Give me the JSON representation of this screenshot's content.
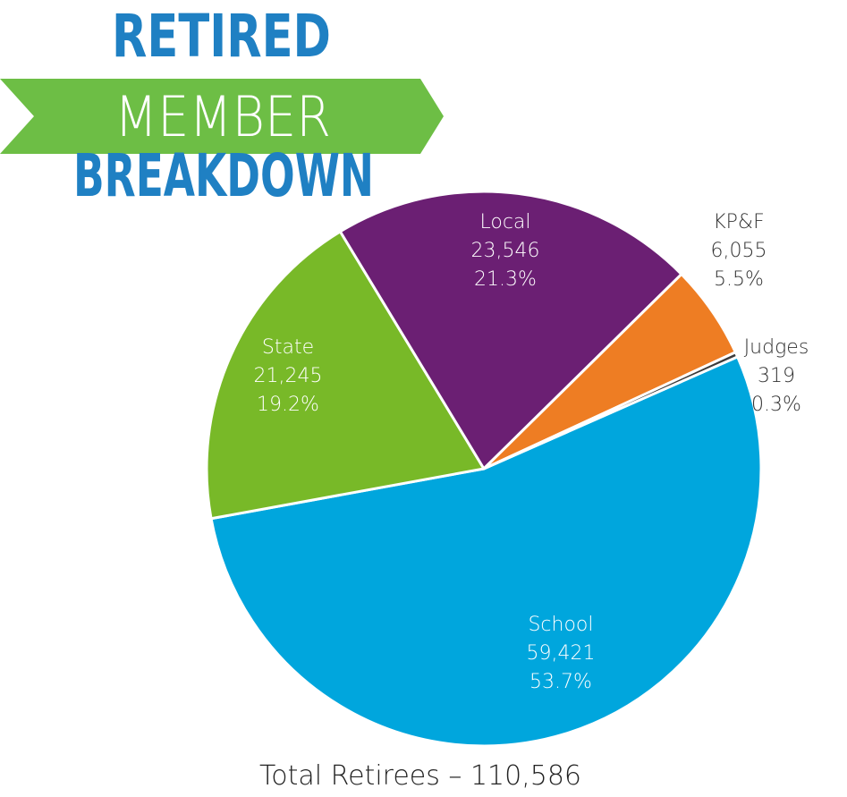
{
  "chart_data": {
    "type": "pie",
    "title_lines": [
      "RETIRED",
      "MEMBER",
      "BREAKDOWN"
    ],
    "categories": [
      "School",
      "State",
      "Local",
      "KP&F",
      "Judges"
    ],
    "values": [
      59421,
      21245,
      23546,
      6055,
      319
    ],
    "value_labels": [
      "59,421",
      "21,245",
      "23,546",
      "6,055",
      "319"
    ],
    "percent_labels": [
      "53.7%",
      "19.2%",
      "21.3%",
      "5.5%",
      "0.3%"
    ],
    "colors": [
      "#00a6dd",
      "#78b928",
      "#6b1f73",
      "#ee7d23",
      "#3a3a3a"
    ],
    "footer": "Total Retirees – 110,586"
  }
}
